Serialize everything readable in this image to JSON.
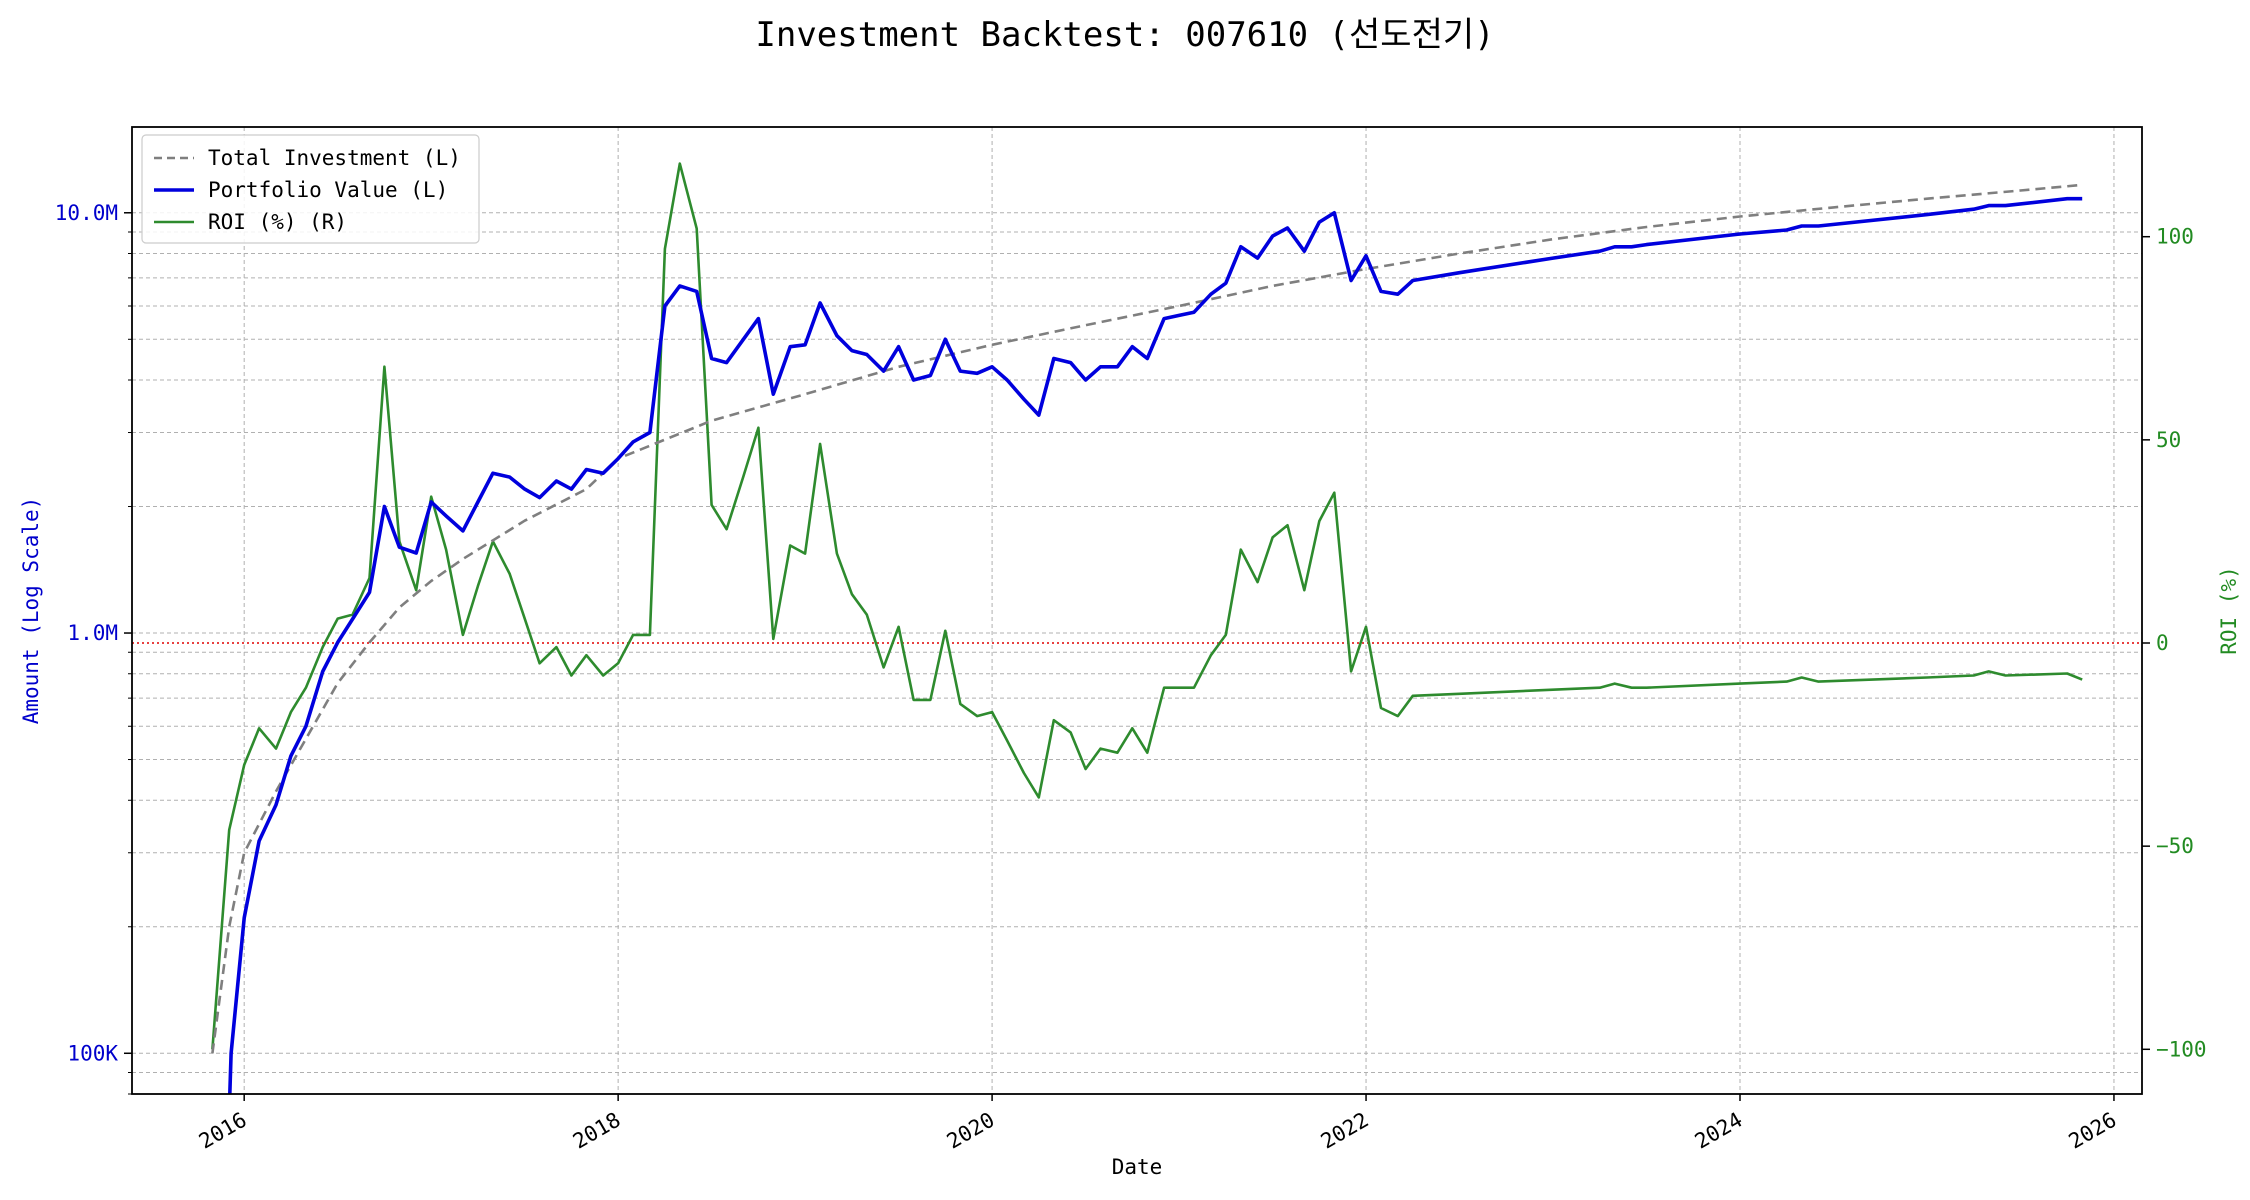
{
  "chart_data": {
    "type": "line",
    "title": "Investment Backtest: 007610 (선도전기)",
    "xlabel": "Date",
    "ylabel_left": "Amount (Log Scale)",
    "ylabel_right": "ROI (%)",
    "x_range": [
      2015.4,
      2026.15
    ],
    "y_left_scale": "log",
    "y_left_range": [
      80000,
      16000000
    ],
    "y_left_ticks": [
      {
        "value": 100000,
        "label": "100K"
      },
      {
        "value": 1000000,
        "label": "1.0M"
      },
      {
        "value": 10000000,
        "label": "10.0M"
      }
    ],
    "y_right_range": [
      -111,
      127
    ],
    "y_right_ticks": [
      {
        "value": -100,
        "label": "−100"
      },
      {
        "value": -50,
        "label": "−50"
      },
      {
        "value": 0,
        "label": "0"
      },
      {
        "value": 50,
        "label": "50"
      },
      {
        "value": 100,
        "label": "100"
      }
    ],
    "x_ticks": [
      {
        "value": 2016,
        "label": "2016"
      },
      {
        "value": 2018,
        "label": "2018"
      },
      {
        "value": 2020,
        "label": "2020"
      },
      {
        "value": 2022,
        "label": "2022"
      },
      {
        "value": 2024,
        "label": "2024"
      },
      {
        "value": 2026,
        "label": "2026"
      }
    ],
    "grid": true,
    "legend_position": "top-left",
    "reference_line": {
      "axis": "right",
      "value": 0,
      "color": "#e00000",
      "style": "dotted"
    },
    "series": [
      {
        "name": "Total Investment (L)",
        "axis": "left",
        "color": "#7f7f7f",
        "style": "dashed",
        "points": [
          [
            2015.83,
            100000
          ],
          [
            2015.92,
            200000
          ],
          [
            2016.0,
            300000
          ],
          [
            2016.17,
            420000
          ],
          [
            2016.33,
            560000
          ],
          [
            2016.5,
            760000
          ],
          [
            2016.67,
            950000
          ],
          [
            2016.83,
            1150000
          ],
          [
            2017.0,
            1330000
          ],
          [
            2017.17,
            1500000
          ],
          [
            2017.5,
            1850000
          ],
          [
            2017.83,
            2200000
          ],
          [
            2018.0,
            2600000
          ],
          [
            2018.5,
            3200000
          ],
          [
            2019.0,
            3700000
          ],
          [
            2019.5,
            4300000
          ],
          [
            2020.0,
            4850000
          ],
          [
            2020.5,
            5400000
          ],
          [
            2021.0,
            6000000
          ],
          [
            2021.5,
            6700000
          ],
          [
            2022.0,
            7350000
          ],
          [
            2022.5,
            8000000
          ],
          [
            2023.0,
            8650000
          ],
          [
            2023.5,
            9250000
          ],
          [
            2024.0,
            9800000
          ],
          [
            2024.5,
            10300000
          ],
          [
            2025.0,
            10800000
          ],
          [
            2025.5,
            11300000
          ],
          [
            2025.83,
            11650000
          ]
        ]
      },
      {
        "name": "Portfolio Value (L)",
        "axis": "left",
        "color": "#0000dd",
        "style": "solid",
        "points": [
          [
            2015.92,
            72000
          ],
          [
            2015.93,
            100000
          ],
          [
            2016.0,
            210000
          ],
          [
            2016.08,
            320000
          ],
          [
            2016.17,
            390000
          ],
          [
            2016.25,
            510000
          ],
          [
            2016.33,
            600000
          ],
          [
            2016.42,
            810000
          ],
          [
            2016.5,
            950000
          ],
          [
            2016.58,
            1080000
          ],
          [
            2016.67,
            1250000
          ],
          [
            2016.75,
            2000000
          ],
          [
            2016.83,
            1600000
          ],
          [
            2016.92,
            1550000
          ],
          [
            2017.0,
            2050000
          ],
          [
            2017.08,
            1900000
          ],
          [
            2017.17,
            1750000
          ],
          [
            2017.25,
            2050000
          ],
          [
            2017.33,
            2400000
          ],
          [
            2017.42,
            2350000
          ],
          [
            2017.5,
            2200000
          ],
          [
            2017.58,
            2100000
          ],
          [
            2017.67,
            2300000
          ],
          [
            2017.75,
            2200000
          ],
          [
            2017.83,
            2450000
          ],
          [
            2017.92,
            2400000
          ],
          [
            2018.0,
            2600000
          ],
          [
            2018.08,
            2850000
          ],
          [
            2018.17,
            3000000
          ],
          [
            2018.25,
            6000000
          ],
          [
            2018.33,
            6700000
          ],
          [
            2018.42,
            6500000
          ],
          [
            2018.5,
            4500000
          ],
          [
            2018.58,
            4400000
          ],
          [
            2018.67,
            5000000
          ],
          [
            2018.75,
            5600000
          ],
          [
            2018.83,
            3700000
          ],
          [
            2018.92,
            4800000
          ],
          [
            2019.0,
            4850000
          ],
          [
            2019.08,
            6100000
          ],
          [
            2019.17,
            5100000
          ],
          [
            2019.25,
            4700000
          ],
          [
            2019.33,
            4600000
          ],
          [
            2019.42,
            4200000
          ],
          [
            2019.5,
            4800000
          ],
          [
            2019.58,
            4000000
          ],
          [
            2019.67,
            4100000
          ],
          [
            2019.75,
            5000000
          ],
          [
            2019.83,
            4200000
          ],
          [
            2019.92,
            4150000
          ],
          [
            2020.0,
            4300000
          ],
          [
            2020.08,
            4000000
          ],
          [
            2020.17,
            3600000
          ],
          [
            2020.25,
            3300000
          ],
          [
            2020.33,
            4500000
          ],
          [
            2020.42,
            4400000
          ],
          [
            2020.5,
            4000000
          ],
          [
            2020.58,
            4300000
          ],
          [
            2020.67,
            4300000
          ],
          [
            2020.75,
            4800000
          ],
          [
            2020.83,
            4500000
          ],
          [
            2020.92,
            5600000
          ],
          [
            2021.0,
            5700000
          ],
          [
            2021.08,
            5800000
          ],
          [
            2021.17,
            6400000
          ],
          [
            2021.25,
            6800000
          ],
          [
            2021.33,
            8300000
          ],
          [
            2021.42,
            7800000
          ],
          [
            2021.5,
            8800000
          ],
          [
            2021.58,
            9200000
          ],
          [
            2021.67,
            8100000
          ],
          [
            2021.75,
            9500000
          ],
          [
            2021.83,
            10000000
          ],
          [
            2021.92,
            6900000
          ],
          [
            2022.0,
            7900000
          ],
          [
            2022.08,
            6500000
          ],
          [
            2022.17,
            6400000
          ],
          [
            2022.25,
            6900000
          ],
          [
            2022.5,
            7200000
          ],
          [
            2023.0,
            7800000
          ],
          [
            2023.25,
            8100000
          ],
          [
            2023.33,
            8300000
          ],
          [
            2023.42,
            8300000
          ],
          [
            2023.5,
            8400000
          ],
          [
            2024.0,
            8900000
          ],
          [
            2024.25,
            9100000
          ],
          [
            2024.33,
            9300000
          ],
          [
            2024.42,
            9300000
          ],
          [
            2025.0,
            9900000
          ],
          [
            2025.25,
            10200000
          ],
          [
            2025.33,
            10400000
          ],
          [
            2025.42,
            10400000
          ],
          [
            2025.75,
            10800000
          ],
          [
            2025.83,
            10800000
          ]
        ]
      },
      {
        "name": "ROI (%) (R)",
        "axis": "right",
        "color": "#2e8b2e",
        "style": "solid",
        "points": [
          [
            2015.83,
            -100
          ],
          [
            2015.92,
            -46
          ],
          [
            2016.0,
            -30
          ],
          [
            2016.08,
            -21
          ],
          [
            2016.17,
            -26
          ],
          [
            2016.25,
            -17
          ],
          [
            2016.33,
            -11
          ],
          [
            2016.42,
            -1
          ],
          [
            2016.5,
            6
          ],
          [
            2016.58,
            7
          ],
          [
            2016.67,
            16
          ],
          [
            2016.75,
            68
          ],
          [
            2016.83,
            25
          ],
          [
            2016.92,
            13
          ],
          [
            2017.0,
            36
          ],
          [
            2017.08,
            23
          ],
          [
            2017.17,
            2
          ],
          [
            2017.25,
            14
          ],
          [
            2017.33,
            25
          ],
          [
            2017.42,
            17
          ],
          [
            2017.5,
            6
          ],
          [
            2017.58,
            -5
          ],
          [
            2017.67,
            -1
          ],
          [
            2017.75,
            -8
          ],
          [
            2017.83,
            -3
          ],
          [
            2017.92,
            -8
          ],
          [
            2018.0,
            -5
          ],
          [
            2018.08,
            2
          ],
          [
            2018.17,
            2
          ],
          [
            2018.25,
            97
          ],
          [
            2018.33,
            118
          ],
          [
            2018.42,
            102
          ],
          [
            2018.5,
            34
          ],
          [
            2018.58,
            28
          ],
          [
            2018.67,
            41
          ],
          [
            2018.75,
            53
          ],
          [
            2018.83,
            1
          ],
          [
            2018.92,
            24
          ],
          [
            2019.0,
            22
          ],
          [
            2019.08,
            49
          ],
          [
            2019.17,
            22
          ],
          [
            2019.25,
            12
          ],
          [
            2019.33,
            7
          ],
          [
            2019.42,
            -6
          ],
          [
            2019.5,
            4
          ],
          [
            2019.58,
            -14
          ],
          [
            2019.67,
            -14
          ],
          [
            2019.75,
            3
          ],
          [
            2019.83,
            -15
          ],
          [
            2019.92,
            -18
          ],
          [
            2020.0,
            -17
          ],
          [
            2020.08,
            -24
          ],
          [
            2020.17,
            -32
          ],
          [
            2020.25,
            -38
          ],
          [
            2020.33,
            -19
          ],
          [
            2020.42,
            -22
          ],
          [
            2020.5,
            -31
          ],
          [
            2020.58,
            -26
          ],
          [
            2020.67,
            -27
          ],
          [
            2020.75,
            -21
          ],
          [
            2020.83,
            -27
          ],
          [
            2020.92,
            -11
          ],
          [
            2021.0,
            -11
          ],
          [
            2021.08,
            -11
          ],
          [
            2021.17,
            -3
          ],
          [
            2021.25,
            2
          ],
          [
            2021.33,
            23
          ],
          [
            2021.42,
            15
          ],
          [
            2021.5,
            26
          ],
          [
            2021.58,
            29
          ],
          [
            2021.67,
            13
          ],
          [
            2021.75,
            30
          ],
          [
            2021.83,
            37
          ],
          [
            2021.92,
            -7
          ],
          [
            2022.0,
            4
          ],
          [
            2022.08,
            -16
          ],
          [
            2022.17,
            -18
          ],
          [
            2022.25,
            -13
          ],
          [
            2022.5,
            -12.5
          ],
          [
            2023.0,
            -11.5
          ],
          [
            2023.25,
            -11
          ],
          [
            2023.33,
            -10
          ],
          [
            2023.42,
            -11
          ],
          [
            2023.5,
            -11
          ],
          [
            2024.0,
            -10
          ],
          [
            2024.25,
            -9.5
          ],
          [
            2024.33,
            -8.5
          ],
          [
            2024.42,
            -9.5
          ],
          [
            2025.0,
            -8.5
          ],
          [
            2025.25,
            -8
          ],
          [
            2025.33,
            -7
          ],
          [
            2025.42,
            -8
          ],
          [
            2025.75,
            -7.5
          ],
          [
            2025.83,
            -9
          ]
        ]
      }
    ]
  }
}
